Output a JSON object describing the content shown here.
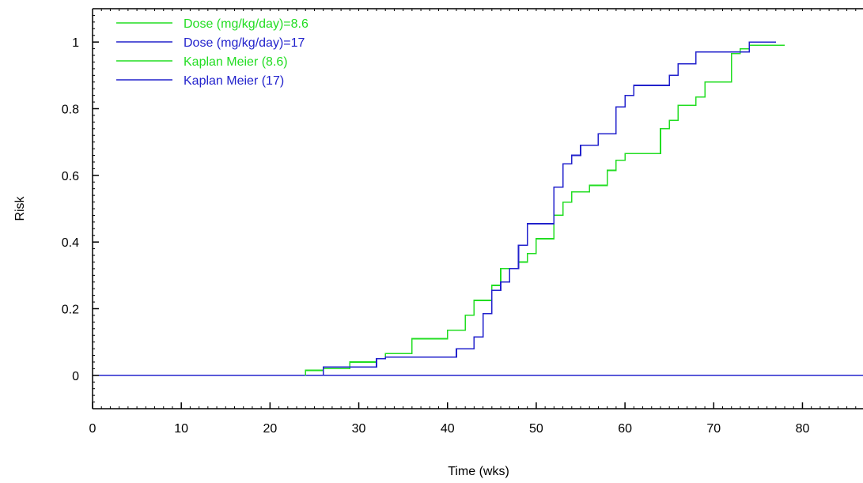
{
  "chart_data": {
    "type": "line",
    "title": "",
    "xlabel": "Time (wks)",
    "ylabel": "Risk",
    "xlim": [
      0,
      87
    ],
    "ylim": [
      -0.1,
      1.1
    ],
    "xticks": [
      0,
      10,
      20,
      30,
      40,
      50,
      60,
      70,
      80
    ],
    "yticks": [
      0,
      0.2,
      0.4,
      0.6,
      0.8,
      1
    ],
    "xtick_labels": [
      "0",
      "10",
      "20",
      "30",
      "40",
      "50",
      "60",
      "70",
      "80"
    ],
    "ytick_labels": [
      "0",
      "0.2",
      "0.4",
      "0.6",
      "0.8",
      "1"
    ],
    "grid": false,
    "legend_position": "top-left",
    "series": [
      {
        "name": "Dose (mg/kg/day)=8.6",
        "color": "#22dd22",
        "style": "line",
        "x": [
          0,
          88
        ],
        "y": [
          0,
          0
        ]
      },
      {
        "name": "Dose (mg/kg/day)=17",
        "color": "#2222cc",
        "style": "line",
        "x": [
          0,
          88
        ],
        "y": [
          0,
          0
        ]
      },
      {
        "name": "Kaplan Meier (8.6)",
        "color": "#22dd22",
        "style": "step",
        "x": [
          24,
          26,
          29,
          32,
          33,
          36,
          40,
          42,
          43,
          45,
          46,
          47,
          48,
          49,
          50,
          52,
          53,
          54,
          56,
          58,
          59,
          60,
          61,
          64,
          65,
          66,
          68,
          69,
          72,
          73,
          74,
          78
        ],
        "y": [
          0.015,
          0.02,
          0.04,
          0.05,
          0.065,
          0.11,
          0.135,
          0.18,
          0.225,
          0.27,
          0.32,
          0.32,
          0.34,
          0.365,
          0.41,
          0.48,
          0.52,
          0.55,
          0.57,
          0.615,
          0.645,
          0.665,
          0.665,
          0.74,
          0.765,
          0.81,
          0.835,
          0.88,
          0.965,
          0.98,
          0.99,
          0.99
        ]
      },
      {
        "name": "Kaplan Meier (17)",
        "color": "#2222cc",
        "style": "step",
        "x": [
          26,
          29,
          32,
          33,
          36,
          41,
          43,
          44,
          45,
          46,
          47,
          48,
          49,
          52,
          53,
          54,
          55,
          57,
          59,
          60,
          61,
          65,
          66,
          68,
          71,
          74,
          77
        ],
        "y": [
          0.025,
          0.025,
          0.05,
          0.055,
          0.055,
          0.08,
          0.115,
          0.185,
          0.255,
          0.28,
          0.32,
          0.39,
          0.455,
          0.565,
          0.635,
          0.66,
          0.69,
          0.725,
          0.805,
          0.84,
          0.87,
          0.9,
          0.935,
          0.97,
          0.97,
          1.0,
          1.0
        ]
      }
    ]
  }
}
